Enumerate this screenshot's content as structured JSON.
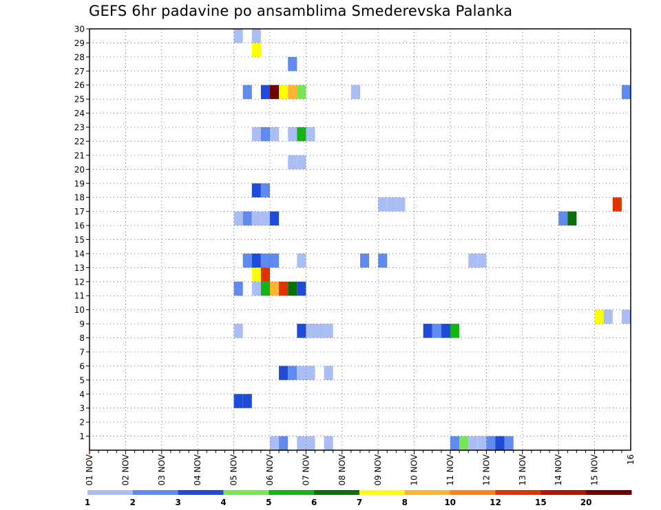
{
  "chart_data": {
    "type": "heatmap",
    "title": "GEFS 6hr padavine po ansamblima Smederevska Palanka",
    "x_labels": [
      "01 NOV",
      "02 NOV",
      "03 NOV",
      "04 NOV",
      "05 NOV",
      "06 NOV",
      "07 NOV",
      "08 NOV",
      "09 NOV",
      "10 NOV",
      "11 NOV",
      "12 NOV",
      "13 NOV",
      "14 NOV",
      "15 NOV",
      "16"
    ],
    "xlim": [
      0,
      60
    ],
    "x_units": "6-hour steps from 01 NOV",
    "y_labels": [
      "1",
      "2",
      "3",
      "4",
      "5",
      "6",
      "7",
      "8",
      "9",
      "10",
      "11",
      "12",
      "13",
      "14",
      "15",
      "16",
      "17",
      "18",
      "19",
      "20",
      "21",
      "22",
      "23",
      "24",
      "25",
      "26",
      "27",
      "28",
      "29",
      "30"
    ],
    "ylim": [
      0,
      30
    ],
    "grid": true,
    "levels": [
      "1",
      "2",
      "3",
      "4",
      "5",
      "6",
      "7",
      "8",
      "10",
      "12",
      "15",
      "20"
    ],
    "colors": [
      "#aabef5",
      "#5f8af0",
      "#1e4bd8",
      "#78e650",
      "#14b414",
      "#0a6e0a",
      "#ffff00",
      "#ffb432",
      "#ff8214",
      "#e13200",
      "#b41400",
      "#6e0000"
    ],
    "cells": [
      [
        0,
        20,
        0
      ],
      [
        0,
        21,
        1
      ],
      [
        0,
        23,
        0
      ],
      [
        0,
        24,
        0
      ],
      [
        0,
        26,
        0
      ],
      [
        0,
        40,
        1
      ],
      [
        0,
        41,
        3
      ],
      [
        0,
        42,
        0
      ],
      [
        0,
        43,
        0
      ],
      [
        0,
        44,
        1
      ],
      [
        0,
        45,
        2
      ],
      [
        0,
        46,
        1
      ],
      [
        3,
        16,
        2
      ],
      [
        3,
        17,
        2
      ],
      [
        5,
        21,
        2
      ],
      [
        5,
        22,
        1
      ],
      [
        5,
        23,
        0
      ],
      [
        5,
        24,
        0
      ],
      [
        5,
        26,
        0
      ],
      [
        8,
        16,
        0
      ],
      [
        8,
        23,
        2
      ],
      [
        8,
        24,
        0
      ],
      [
        8,
        25,
        0
      ],
      [
        8,
        26,
        0
      ],
      [
        8,
        37,
        2
      ],
      [
        8,
        38,
        1
      ],
      [
        8,
        39,
        2
      ],
      [
        8,
        40,
        4
      ],
      [
        9,
        56,
        6
      ],
      [
        9,
        57,
        0
      ],
      [
        9,
        59,
        0
      ],
      [
        11,
        16,
        1
      ],
      [
        11,
        18,
        0
      ],
      [
        11,
        19,
        4
      ],
      [
        11,
        20,
        7
      ],
      [
        11,
        21,
        9
      ],
      [
        11,
        22,
        5
      ],
      [
        11,
        23,
        2
      ],
      [
        12,
        18,
        6
      ],
      [
        12,
        19,
        9
      ],
      [
        13,
        17,
        1
      ],
      [
        13,
        18,
        2
      ],
      [
        13,
        19,
        1
      ],
      [
        13,
        20,
        1
      ],
      [
        13,
        23,
        0
      ],
      [
        13,
        30,
        1
      ],
      [
        13,
        32,
        1
      ],
      [
        13,
        42,
        0
      ],
      [
        13,
        43,
        0
      ],
      [
        16,
        16,
        0
      ],
      [
        16,
        17,
        1
      ],
      [
        16,
        18,
        0
      ],
      [
        16,
        19,
        0
      ],
      [
        16,
        20,
        2
      ],
      [
        16,
        52,
        1
      ],
      [
        16,
        53,
        5
      ],
      [
        17,
        32,
        0
      ],
      [
        17,
        33,
        0
      ],
      [
        17,
        34,
        0
      ],
      [
        17,
        58,
        9
      ],
      [
        18,
        18,
        2
      ],
      [
        18,
        19,
        1
      ],
      [
        20,
        22,
        0
      ],
      [
        20,
        23,
        0
      ],
      [
        22,
        18,
        0
      ],
      [
        22,
        19,
        1
      ],
      [
        22,
        20,
        0
      ],
      [
        22,
        22,
        0
      ],
      [
        22,
        23,
        4
      ],
      [
        22,
        24,
        0
      ],
      [
        25,
        17,
        1
      ],
      [
        25,
        19,
        2
      ],
      [
        25,
        20,
        11
      ],
      [
        25,
        21,
        6
      ],
      [
        25,
        22,
        7
      ],
      [
        25,
        23,
        3
      ],
      [
        25,
        29,
        0
      ],
      [
        25,
        59,
        1
      ],
      [
        27,
        22,
        1
      ],
      [
        28,
        18,
        6
      ],
      [
        29,
        16,
        0
      ],
      [
        29,
        18,
        0
      ]
    ]
  }
}
